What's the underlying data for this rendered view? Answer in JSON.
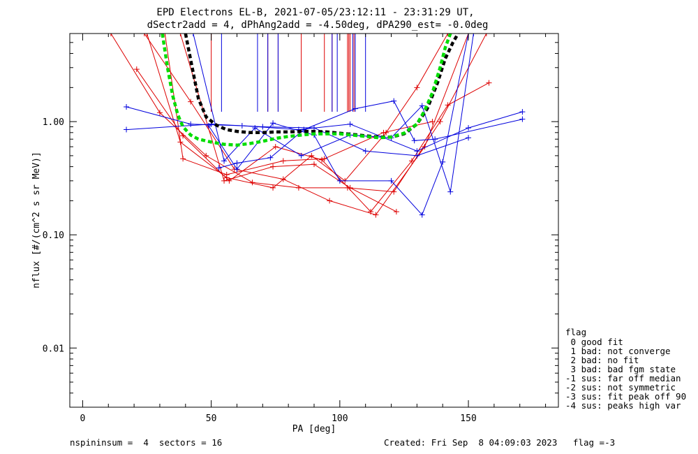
{
  "title_line1": "EPD Electrons EL-B, 2021-07-05/23:12:11 - 23:31:29 UT,",
  "title_line2": "dSectr2add = 4, dPhAng2add = -4.50deg, dPA290_est=  -0.0deg",
  "footer_left": "nspininsum =  4  sectors = 16",
  "footer_right": "Created: Fri Sep  8 04:09:03 2023   flag =-3",
  "legend": {
    "title": "flag",
    "items": [
      " 0 good fit",
      " 1 bad: not converge",
      " 2 bad: no fit",
      " 3 bad: bad fgm state",
      "-1 sus: far off median",
      "-2 sus: not symmetric",
      "-3 sus: fit peak off 90",
      "-4 sus: peaks high var"
    ]
  },
  "colors": {
    "red": "#dd0000",
    "blue": "#0000dd",
    "black": "#000000",
    "green": "#00dd00"
  },
  "chart_data": {
    "type": "line",
    "xlabel": "PA [deg]",
    "ylabel": "nflux [#/(cm^2 s sr MeV)]",
    "xlim": [
      -5,
      185
    ],
    "ylim": [
      0.003,
      6.0
    ],
    "yscale": "log",
    "xticks": [
      0,
      50,
      100,
      150
    ],
    "xtick_labels": [
      "0",
      "50",
      "100",
      "150"
    ],
    "yticks": [
      0.01,
      0.1,
      1.0
    ],
    "ytick_labels": [
      "0.01",
      "0.10",
      "1.00"
    ],
    "series": [
      {
        "color": "red",
        "style": "line+marker",
        "x": [
          21,
          39,
          57,
          75,
          93,
          112,
          128,
          142,
          158
        ],
        "y": [
          2.9,
          0.75,
          0.3,
          0.6,
          0.46,
          0.16,
          0.45,
          1.4,
          2.2
        ]
      },
      {
        "color": "red",
        "style": "line+marker",
        "x": [
          11,
          30,
          48,
          66,
          84,
          103,
          121,
          139,
          157
        ],
        "y": [
          6.0,
          1.2,
          0.5,
          0.29,
          0.26,
          0.26,
          0.24,
          1.0,
          6.0
        ]
      },
      {
        "color": "red",
        "style": "line+marker",
        "x": [
          25,
          38,
          56,
          74,
          89,
          102,
          118,
          130,
          142
        ],
        "y": [
          6.0,
          0.66,
          0.32,
          0.26,
          0.5,
          0.3,
          0.8,
          2.0,
          6.0
        ]
      },
      {
        "color": "red",
        "style": "line+marker",
        "x": [
          24,
          42,
          59,
          78,
          96,
          114,
          133,
          150
        ],
        "y": [
          6.0,
          1.5,
          0.38,
          0.31,
          0.2,
          0.15,
          0.6,
          6.0
        ]
      },
      {
        "color": "red",
        "style": "line+marker",
        "x": [
          32,
          39,
          56,
          78,
          94,
          117,
          136
        ],
        "y": [
          6.0,
          0.47,
          0.34,
          0.45,
          0.47,
          0.8,
          1.0
        ]
      },
      {
        "color": "red",
        "style": "line+marker",
        "x": [
          38,
          55,
          74,
          90,
          104,
          122
        ],
        "y": [
          6.0,
          0.3,
          0.4,
          0.42,
          0.26,
          0.16
        ]
      },
      {
        "color": "blue",
        "style": "line+marker",
        "x": [
          17,
          50,
          70,
          90,
          110,
          130,
          150
        ],
        "y": [
          0.85,
          0.95,
          0.9,
          0.88,
          0.55,
          0.5,
          0.72
        ]
      },
      {
        "color": "blue",
        "style": "line+marker",
        "x": [
          17,
          42,
          62,
          84,
          104,
          130,
          150,
          171
        ],
        "y": [
          1.35,
          0.95,
          0.92,
          0.85,
          0.95,
          0.55,
          0.88,
          1.22
        ]
      },
      {
        "color": "blue",
        "style": "line+marker",
        "x": [
          53,
          60,
          73,
          86,
          106,
          121,
          129,
          137,
          171
        ],
        "y": [
          0.39,
          0.43,
          0.48,
          0.85,
          1.3,
          1.52,
          0.68,
          0.7,
          1.05
        ]
      },
      {
        "color": "blue",
        "style": "line+marker",
        "x": [
          49,
          60,
          74,
          90,
          100,
          120,
          132,
          140,
          150
        ],
        "y": [
          0.92,
          0.38,
          0.97,
          0.76,
          0.3,
          0.3,
          0.15,
          0.44,
          6.0
        ]
      },
      {
        "color": "blue",
        "style": "line+marker",
        "x": [
          43,
          55,
          67,
          85,
          104,
          120,
          132,
          143,
          152
        ],
        "y": [
          6.0,
          0.45,
          0.88,
          0.5,
          0.76,
          0.72,
          1.38,
          0.24,
          6.0
        ]
      },
      {
        "color": "black",
        "style": "fit",
        "x": [
          40,
          42,
          45,
          48,
          52,
          56,
          60,
          65,
          70,
          75,
          80,
          85,
          90,
          95,
          100,
          105,
          110,
          115,
          120,
          125,
          130,
          134,
          138,
          141,
          144,
          146
        ],
        "y": [
          6.0,
          3.5,
          1.6,
          1.1,
          0.93,
          0.85,
          0.82,
          0.8,
          0.8,
          0.81,
          0.81,
          0.82,
          0.82,
          0.81,
          0.79,
          0.77,
          0.75,
          0.73,
          0.73,
          0.78,
          0.95,
          1.3,
          2.2,
          3.6,
          5.0,
          6.0
        ]
      },
      {
        "color": "green",
        "style": "fit",
        "x": [
          31,
          33,
          35,
          37,
          39,
          42,
          45,
          50,
          55,
          60,
          65,
          70,
          75,
          80,
          85,
          90,
          95,
          100,
          105,
          110,
          115,
          120,
          125,
          130,
          133,
          136,
          139,
          141,
          143
        ],
        "y": [
          6.0,
          3.0,
          1.7,
          1.15,
          0.9,
          0.76,
          0.7,
          0.66,
          0.63,
          0.62,
          0.64,
          0.67,
          0.71,
          0.74,
          0.76,
          0.78,
          0.78,
          0.78,
          0.76,
          0.74,
          0.72,
          0.73,
          0.79,
          0.95,
          1.25,
          1.8,
          3.0,
          4.5,
          6.0
        ]
      }
    ],
    "vertical_lines": [
      {
        "color": "red",
        "x": [
          50,
          72,
          76,
          85,
          94,
          97,
          103,
          103.5,
          104,
          105.5
        ]
      },
      {
        "color": "blue",
        "x": [
          54,
          68,
          72,
          76,
          97,
          99,
          105,
          106,
          110
        ]
      }
    ],
    "grid": false
  }
}
